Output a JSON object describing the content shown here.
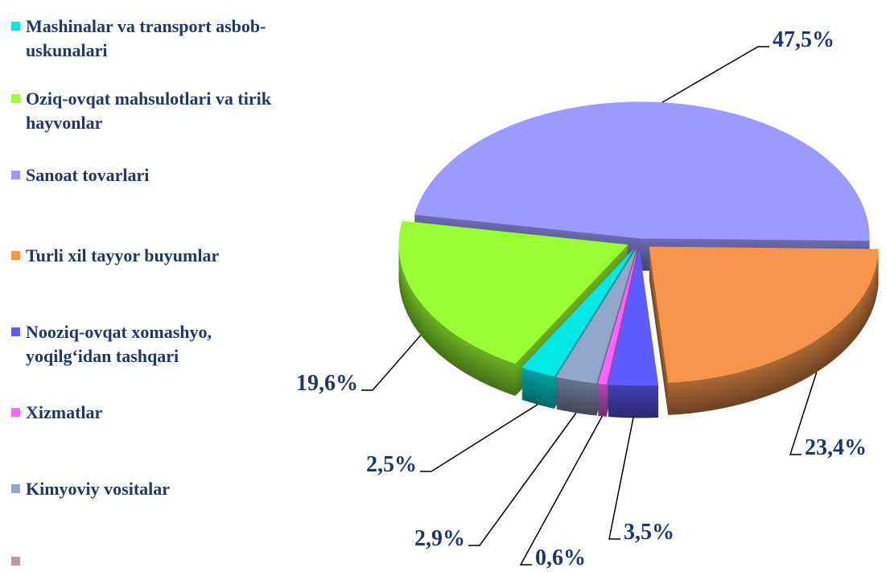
{
  "chart_data": {
    "type": "pie",
    "categories": [
      "Mashinalar va transport asbob-\nuskunalari",
      "Oziq-ovqat mahsulotlari va tirik\nhayvonlar",
      "Sanoat tovarlari",
      "Turli xil tayyor buyumlar",
      "Nooziq-ovqat xomashyo,\nyoqilg‘idan tashqari",
      "Xizmatlar",
      "Kimyoviy vositalar",
      null
    ],
    "values": [
      2.5,
      19.6,
      47.5,
      23.4,
      3.5,
      0.6,
      2.9,
      null
    ],
    "value_labels": [
      "2,5%",
      "19,6%",
      "47,5%",
      "23,4%",
      "3,5%",
      "0,6%",
      "2,9%",
      null
    ],
    "colors": [
      "#00e8e8",
      "#99ff33",
      "#9a9aff",
      "#f7964a",
      "#5c5cff",
      "#ff66ff",
      "#93a6cc",
      "#c09898"
    ]
  }
}
